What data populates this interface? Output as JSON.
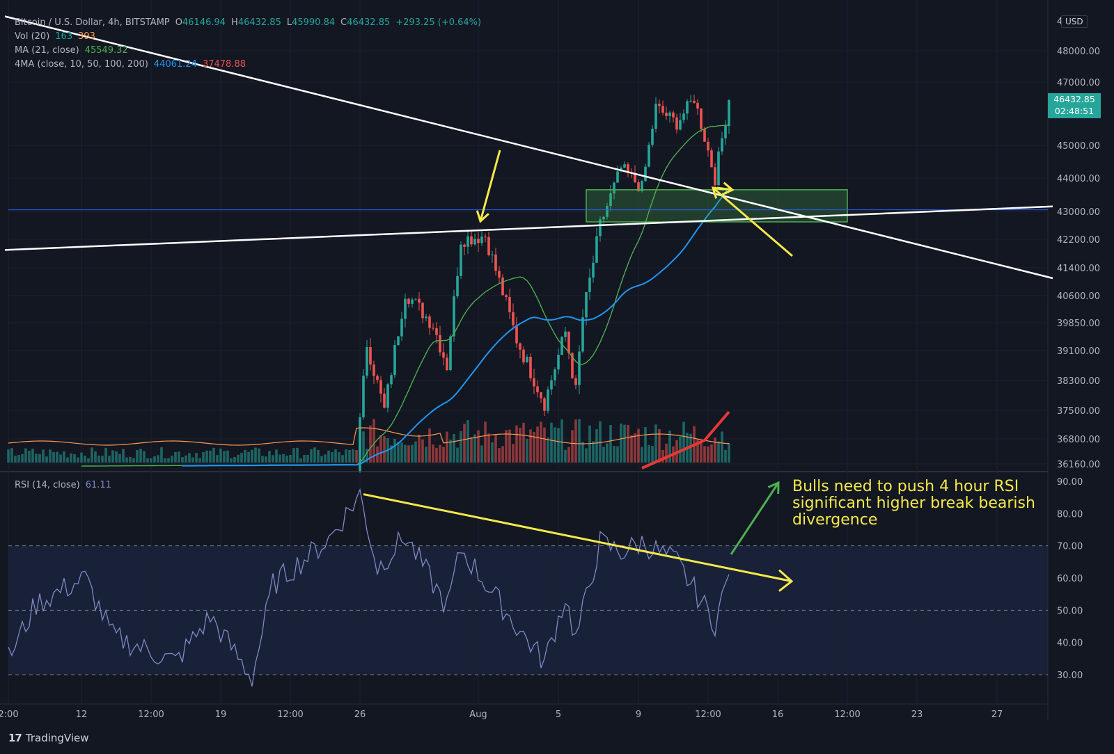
{
  "symbol": {
    "title": "Bitcoin / U.S. Dollar, 4h, BITSTAMP",
    "open_label": "O",
    "open": "46146.94",
    "high_label": "H",
    "high": "46432.85",
    "low_label": "L",
    "low": "45990.84",
    "close_label": "C",
    "close": "46432.85",
    "change": "+293.25 (+0.64%)"
  },
  "indicators": {
    "vol_label": "Vol (20)",
    "vol_value1": "163",
    "vol_value2": "393",
    "ma_label": "MA (21, close)",
    "ma_value": "45549.32",
    "ma4_label": "4MA (close, 10, 50, 100, 200)",
    "ma4_value1": "44061.24",
    "ma4_value2": "37478.88",
    "rsi_label": "RSI (14, close)",
    "rsi_value": "61.11"
  },
  "price_axis": {
    "currency": "USD",
    "current_price": "46432.85",
    "countdown": "02:48:51"
  },
  "annotation_text": "Bulls need to push 4 hour RSI significant higher break bearish divergence",
  "branding": "TradingView",
  "colors": {
    "background": "#131722",
    "up": "#26a69a",
    "down": "#ef5350",
    "ma21": "#4caf50",
    "ma50": "#2196f3",
    "annotation": "#f5e94a",
    "zone": "#4caf50",
    "rsi_line": "#7e8ac6",
    "hline": "#2962ff"
  },
  "chart_data": {
    "type": "candlestick",
    "interval": "4h",
    "price_ticks": [
      48000,
      47000,
      45000,
      44000,
      43000,
      42200,
      41400,
      40600,
      39850,
      39100,
      38300,
      37500,
      36800,
      36160
    ],
    "price_tick_labels": [
      "48000.00",
      "47000.00",
      "45000.00",
      "44000.00",
      "43000.00",
      "42200.00",
      "41400.00",
      "40600.00",
      "39850.00",
      "39100.00",
      "38300.00",
      "37500.00",
      "36800.00",
      "36160.00"
    ],
    "top_tick_partial": "49",
    "rsi_ticks": [
      90,
      80,
      70,
      60,
      50,
      40,
      30
    ],
    "rsi_tick_labels": [
      "90.00",
      "80.00",
      "70.00",
      "60.00",
      "50.00",
      "40.00",
      "30.00"
    ],
    "rsi_bands": [
      70,
      50,
      30
    ],
    "time_ticks": [
      {
        "label": "2:00",
        "bar": 0
      },
      {
        "label": "12",
        "bar": 21
      },
      {
        "label": "12:00",
        "bar": 41
      },
      {
        "label": "19",
        "bar": 61
      },
      {
        "label": "12:00",
        "bar": 81
      },
      {
        "label": "26",
        "bar": 101
      },
      {
        "label": "Aug",
        "bar": 135
      },
      {
        "label": "5",
        "bar": 158
      },
      {
        "label": "9",
        "bar": 181
      },
      {
        "label": "12:00",
        "bar": 201
      },
      {
        "label": "16",
        "bar": 221
      },
      {
        "label": "12:00",
        "bar": 241
      },
      {
        "label": "23",
        "bar": 261
      },
      {
        "label": "27",
        "bar": 284
      }
    ],
    "key_closes": [
      {
        "bar": 0,
        "price": 36100
      },
      {
        "bar": 100,
        "price": 36150
      },
      {
        "bar": 103,
        "price": 39300
      },
      {
        "bar": 108,
        "price": 37500
      },
      {
        "bar": 114,
        "price": 40700
      },
      {
        "bar": 122,
        "price": 39800
      },
      {
        "bar": 126,
        "price": 38700
      },
      {
        "bar": 130,
        "price": 42200
      },
      {
        "bar": 137,
        "price": 42300
      },
      {
        "bar": 146,
        "price": 39400
      },
      {
        "bar": 154,
        "price": 37700
      },
      {
        "bar": 160,
        "price": 39600
      },
      {
        "bar": 163,
        "price": 38000
      },
      {
        "bar": 165,
        "price": 40000
      },
      {
        "bar": 170,
        "price": 42600
      },
      {
        "bar": 176,
        "price": 44300
      },
      {
        "bar": 182,
        "price": 43700
      },
      {
        "bar": 186,
        "price": 46200
      },
      {
        "bar": 192,
        "price": 45700
      },
      {
        "bar": 197,
        "price": 46500
      },
      {
        "bar": 203,
        "price": 44000
      },
      {
        "bar": 207,
        "price": 46432.85
      }
    ],
    "rsi_key_points": [
      {
        "bar": 0,
        "rsi": 35
      },
      {
        "bar": 8,
        "rsi": 52
      },
      {
        "bar": 22,
        "rsi": 60
      },
      {
        "bar": 30,
        "rsi": 42
      },
      {
        "bar": 48,
        "rsi": 34
      },
      {
        "bar": 58,
        "rsi": 48
      },
      {
        "bar": 70,
        "rsi": 29
      },
      {
        "bar": 76,
        "rsi": 58
      },
      {
        "bar": 92,
        "rsi": 72
      },
      {
        "bar": 101,
        "rsi": 86
      },
      {
        "bar": 106,
        "rsi": 63
      },
      {
        "bar": 114,
        "rsi": 73
      },
      {
        "bar": 126,
        "rsi": 51
      },
      {
        "bar": 130,
        "rsi": 69
      },
      {
        "bar": 146,
        "rsi": 45
      },
      {
        "bar": 154,
        "rsi": 34
      },
      {
        "bar": 160,
        "rsi": 54
      },
      {
        "bar": 163,
        "rsi": 41
      },
      {
        "bar": 170,
        "rsi": 71
      },
      {
        "bar": 176,
        "rsi": 68
      },
      {
        "bar": 182,
        "rsi": 71
      },
      {
        "bar": 192,
        "rsi": 65
      },
      {
        "bar": 203,
        "rsi": 46
      },
      {
        "bar": 207,
        "rsi": 61.11
      }
    ],
    "drawings": [
      {
        "name": "descending-trendline",
        "points": [
          {
            "bar": -1,
            "price": 49100
          },
          {
            "bar": 300,
            "price": 41100
          }
        ]
      },
      {
        "name": "ascending-trendline",
        "points": [
          {
            "bar": -1,
            "price": 41900
          },
          {
            "bar": 300,
            "price": 43150
          }
        ]
      },
      {
        "name": "support-resistance-line",
        "price": 43050
      },
      {
        "name": "support-zone",
        "from_bar": 166,
        "to_bar": 241,
        "price_low": 42700,
        "price_high": 43650
      },
      {
        "name": "rsi-divergence-trendline",
        "points": [
          {
            "bar": 102,
            "rsi": 86
          },
          {
            "bar": 225,
            "rsi": 59
          }
        ]
      }
    ],
    "series": [
      {
        "name": "MA (21, close)",
        "color": "#4caf50"
      },
      {
        "name": "4MA (close, 10, 50, 100, 200)",
        "color": "#2196f3"
      }
    ]
  }
}
